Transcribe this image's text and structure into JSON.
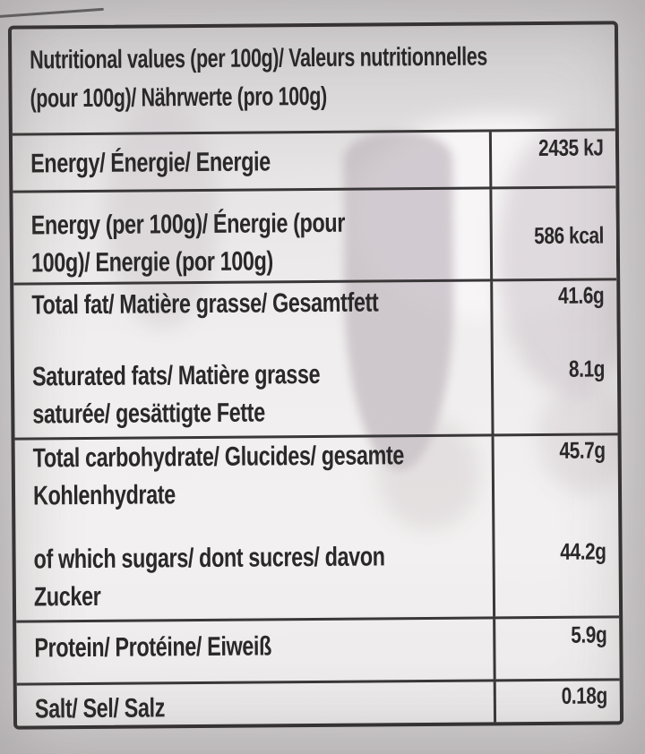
{
  "label": {
    "header": "Nutritional values (per 100g)/ Valeurs nutritionnelles\n(pour 100g)/ Nährwerte (pro 100g)",
    "groups": [
      {
        "name": "energy-kj",
        "rows": [
          {
            "label": "Energy/ Énergie/ Energie",
            "value": "2435 kJ"
          }
        ]
      },
      {
        "name": "energy-kcal",
        "rows": [
          {
            "label": "Energy (per 100g)/ Énergie (pour\n100g)/ Energie (por 100g)",
            "value": "586 kcal"
          }
        ]
      },
      {
        "name": "fat",
        "rows": [
          {
            "label": "Total fat/ Matière grasse/ Gesamtfett",
            "value": "41.6g"
          },
          {
            "label": "Saturated fats/ Matière grasse\nsaturée/ gesättigte Fette",
            "value": "8.1g"
          }
        ]
      },
      {
        "name": "carbohydrate",
        "rows": [
          {
            "label": "Total carbohydrate/ Glucides/ gesamte\nKohlenhydrate",
            "value": "45.7g"
          },
          {
            "label": "of which sugars/ dont sucres/ davon\nZucker",
            "value": "44.2g"
          }
        ]
      },
      {
        "name": "protein",
        "rows": [
          {
            "label": "Protein/ Protéine/ Eiweiß",
            "value": "5.9g"
          }
        ]
      },
      {
        "name": "salt",
        "rows": [
          {
            "label": "Salt/ Sel/ Salz",
            "value": "0.18g"
          }
        ]
      }
    ]
  },
  "colors": {
    "border": "#333031",
    "text": "#2a2828",
    "label_background": "#f0eeee",
    "photo_background": "#d6d3d4",
    "drip_shadow": "#bab0b8"
  }
}
